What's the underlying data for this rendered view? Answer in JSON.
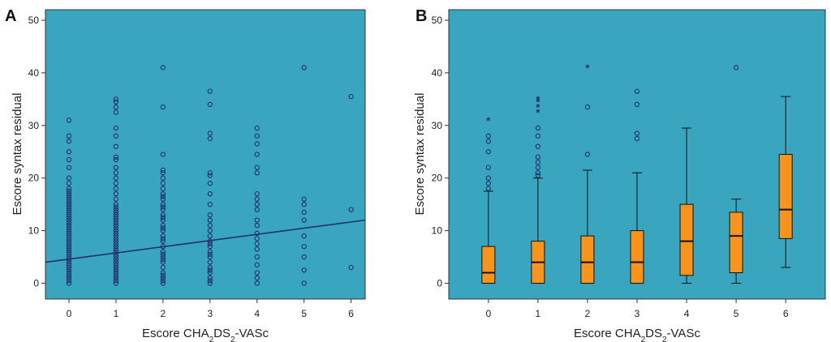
{
  "colors": {
    "plot_bg": "#3aa5bf",
    "marker": "#1f2f6e",
    "fit_line": "#23306b",
    "box_fill": "#f7941d",
    "box_stroke": "#111111"
  },
  "chart_data": [
    {
      "panel": "A",
      "type": "scatter",
      "xlabel": "Escore CHA2DS2-VASc",
      "ylabel": "Escore syntax residual",
      "xlim": [
        -0.5,
        6.3
      ],
      "ylim": [
        -3,
        52
      ],
      "xticks": [
        "0",
        "1",
        "2",
        "3",
        "4",
        "5",
        "6"
      ],
      "yticks": [
        "0",
        "10",
        "20",
        "30",
        "40",
        "50"
      ],
      "points": [
        {
          "x": 0,
          "ys": [
            0,
            0.5,
            1,
            1.5,
            2,
            2.5,
            3,
            3.5,
            4,
            4.5,
            5,
            5.5,
            6,
            6.5,
            7,
            7.5,
            8,
            8.5,
            9,
            9.5,
            10,
            10.5,
            11,
            11.5,
            12,
            12.5,
            13,
            13.5,
            14,
            14.5,
            15,
            15.5,
            16,
            16.5,
            17,
            17.5,
            18,
            19,
            20,
            22,
            23.5,
            25,
            27,
            28,
            31
          ]
        },
        {
          "x": 1,
          "ys": [
            0,
            0.5,
            1,
            1.5,
            2,
            2.5,
            3,
            3.5,
            4,
            4.5,
            5,
            5.5,
            6,
            6.5,
            7,
            7.5,
            8,
            8.5,
            9,
            9.5,
            10,
            10.5,
            11,
            11.5,
            12,
            12.5,
            13,
            13.5,
            14,
            14.5,
            15,
            16,
            17,
            18,
            19,
            20,
            21,
            22,
            23.5,
            24,
            26,
            28,
            29.5,
            32.5,
            33.5,
            34.5,
            35
          ]
        },
        {
          "x": 2,
          "ys": [
            0,
            0.5,
            1,
            1.5,
            2,
            3,
            4,
            4.5,
            5,
            5.5,
            6,
            7,
            8,
            8.5,
            9,
            10,
            10.5,
            11,
            12,
            12.5,
            13,
            14,
            14.5,
            15,
            16,
            16.5,
            17,
            18,
            19,
            20,
            21,
            21.5,
            24.5,
            33.5,
            41
          ]
        },
        {
          "x": 3,
          "ys": [
            0,
            0.5,
            1,
            2,
            2.5,
            3,
            4,
            5,
            5.5,
            6,
            7,
            7.5,
            8,
            9,
            10,
            11,
            12,
            13,
            15,
            17,
            19,
            20.5,
            21,
            27.5,
            28.5,
            34,
            36.5
          ]
        },
        {
          "x": 4,
          "ys": [
            0,
            1,
            2,
            3.5,
            5,
            6.5,
            7.5,
            8.5,
            9.5,
            11,
            12,
            14,
            15,
            16,
            17,
            21,
            22,
            24.5,
            26.5,
            28,
            29.5
          ]
        },
        {
          "x": 5,
          "ys": [
            0,
            2.5,
            5,
            7,
            9,
            12,
            13.5,
            15,
            16,
            41
          ]
        },
        {
          "x": 6,
          "ys": [
            3,
            14,
            35.5
          ]
        }
      ],
      "fit_line": {
        "x": [
          -0.5,
          6.3
        ],
        "y": [
          4.0,
          12.0
        ]
      }
    },
    {
      "panel": "B",
      "type": "box",
      "xlabel": "Escore CHA2DS2-VASc",
      "ylabel": "Escore syntax residual",
      "xlim": [
        -0.8,
        6.8
      ],
      "ylim": [
        -3,
        52
      ],
      "xticks": [
        "0",
        "1",
        "2",
        "3",
        "4",
        "5",
        "6"
      ],
      "yticks": [
        "0",
        "10",
        "20",
        "30",
        "40",
        "50"
      ],
      "boxes": [
        {
          "category": "0",
          "min": 0,
          "q1": 0,
          "median": 2,
          "q3": 7,
          "max": 17.5,
          "outliers": [
            18,
            19,
            20,
            22,
            25,
            27,
            28
          ],
          "extremes": [
            31
          ]
        },
        {
          "category": "1",
          "min": 0,
          "q1": 0,
          "median": 4,
          "q3": 8,
          "max": 20,
          "outliers": [
            20.5,
            21,
            22,
            23,
            24,
            26,
            28,
            29.5
          ],
          "extremes": [
            32.5,
            33.5,
            34.5,
            35
          ]
        },
        {
          "category": "2",
          "min": 0,
          "q1": 0,
          "median": 4,
          "q3": 9,
          "max": 21.5,
          "outliers": [
            24.5,
            33.5
          ],
          "extremes": [
            41
          ]
        },
        {
          "category": "3",
          "min": 0,
          "q1": 0,
          "median": 4,
          "q3": 10,
          "max": 21,
          "outliers": [
            27.5,
            28.5,
            34,
            36.5
          ],
          "extremes": []
        },
        {
          "category": "4",
          "min": 0,
          "q1": 1.5,
          "median": 8,
          "q3": 15,
          "max": 29.5,
          "outliers": [],
          "extremes": []
        },
        {
          "category": "5",
          "min": 0,
          "q1": 2,
          "median": 9,
          "q3": 13.5,
          "max": 16,
          "outliers": [
            41
          ],
          "extremes": []
        },
        {
          "category": "6",
          "min": 3,
          "q1": 8.5,
          "median": 14,
          "q3": 24.5,
          "max": 35.5,
          "outliers": [],
          "extremes": []
        }
      ]
    }
  ]
}
